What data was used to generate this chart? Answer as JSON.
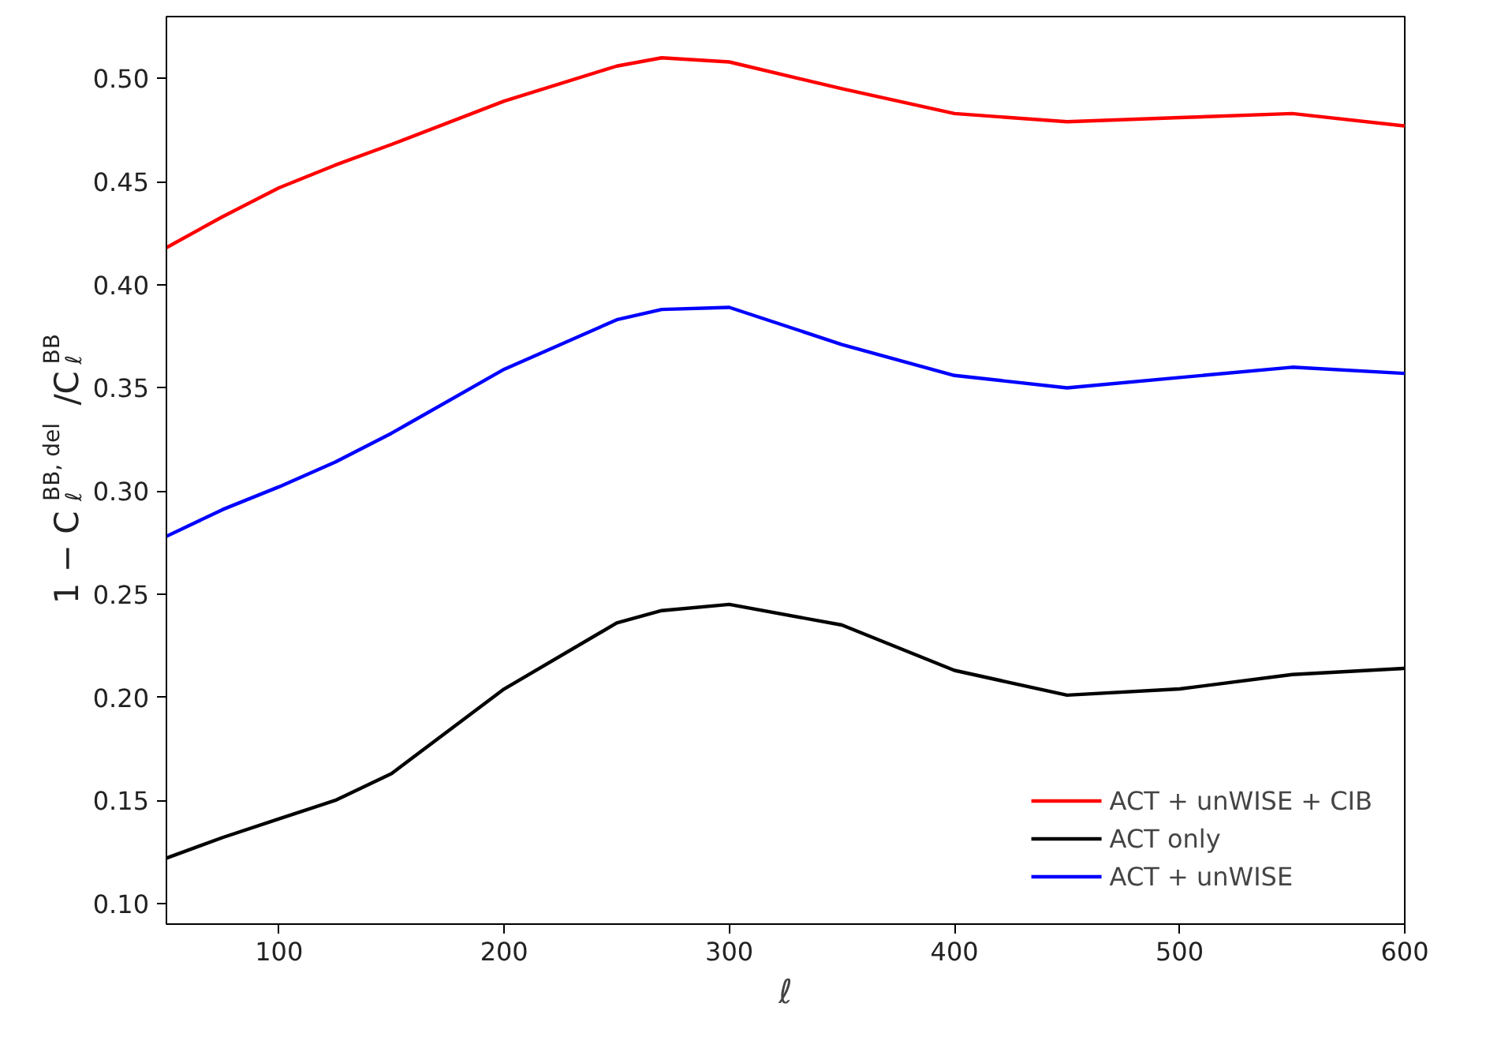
{
  "chart_data": {
    "type": "line",
    "xlabel": "ℓ",
    "ylabel": "1 − C$_{ℓ}$$^{BB, del}$/C$_{ℓ}$$^{BB}$",
    "x": [
      50,
      75,
      100,
      125,
      150,
      200,
      250,
      270,
      300,
      350,
      400,
      450,
      500,
      550,
      600
    ],
    "series": [
      {
        "name": "ACT + unWISE + CIB",
        "color": "#ff0000",
        "values": [
          0.418,
          0.433,
          0.447,
          0.458,
          0.468,
          0.489,
          0.506,
          0.51,
          0.508,
          0.495,
          0.483,
          0.479,
          0.481,
          0.483,
          0.477
        ]
      },
      {
        "name": "ACT only",
        "color": "#000000",
        "values": [
          0.122,
          0.132,
          0.141,
          0.15,
          0.163,
          0.204,
          0.236,
          0.242,
          0.245,
          0.235,
          0.213,
          0.201,
          0.204,
          0.211,
          0.214
        ]
      },
      {
        "name": "ACT + unWISE",
        "color": "#0000ff",
        "values": [
          0.278,
          0.291,
          0.302,
          0.314,
          0.328,
          0.359,
          0.383,
          0.388,
          0.389,
          0.371,
          0.356,
          0.35,
          0.355,
          0.36,
          0.357
        ]
      }
    ],
    "xlim": [
      50,
      600
    ],
    "xticks": [
      100,
      200,
      300,
      400,
      500,
      600
    ],
    "ylim": [
      0.09,
      0.53
    ],
    "yticks": [
      {
        "value": 0.1,
        "label": "0.10"
      },
      0.15,
      {
        "value": 0.2,
        "label": "0.20"
      },
      0.25,
      {
        "value": 0.3,
        "label": "0.30"
      },
      0.35,
      {
        "value": 0.4,
        "label": "0.40"
      },
      0.45,
      {
        "value": 0.5,
        "label": "0.50"
      }
    ],
    "grid": false,
    "legend": "bottom right",
    "line_style": "solid",
    "marker": "none"
  }
}
